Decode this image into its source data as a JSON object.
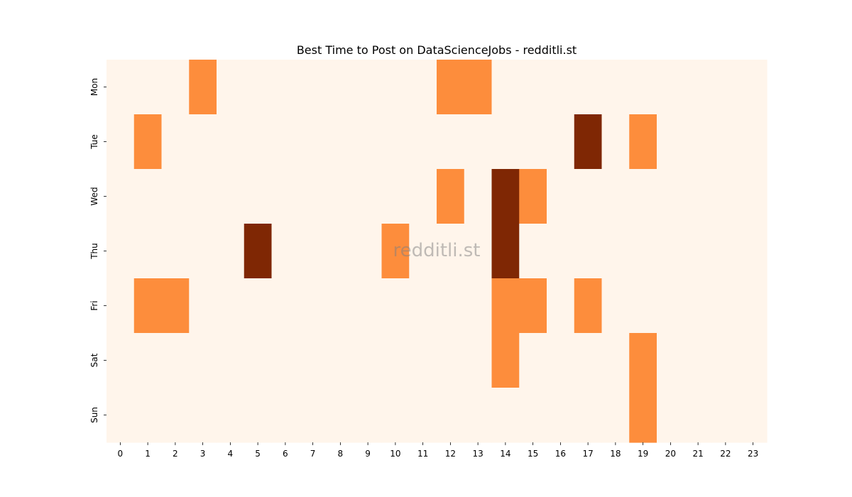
{
  "chart_data": {
    "type": "heatmap",
    "title": "Best Time to Post on DataScienceJobs - redditli.st",
    "watermark": "redditli.st",
    "xlabel": "",
    "ylabel": "",
    "x_categories": [
      "0",
      "1",
      "2",
      "3",
      "4",
      "5",
      "6",
      "7",
      "8",
      "9",
      "10",
      "11",
      "12",
      "13",
      "14",
      "15",
      "16",
      "17",
      "18",
      "19",
      "20",
      "21",
      "22",
      "23"
    ],
    "y_categories": [
      "Mon",
      "Tue",
      "Wed",
      "Thu",
      "Fri",
      "Sat",
      "Sun"
    ],
    "values": [
      [
        0,
        0,
        0,
        1,
        0,
        0,
        0,
        0,
        0,
        0,
        0,
        0,
        1,
        1,
        0,
        0,
        0,
        0,
        0,
        0,
        0,
        0,
        0,
        0
      ],
      [
        0,
        1,
        0,
        0,
        0,
        0,
        0,
        0,
        0,
        0,
        0,
        0,
        0,
        0,
        0,
        0,
        0,
        2,
        0,
        1,
        0,
        0,
        0,
        0
      ],
      [
        0,
        0,
        0,
        0,
        0,
        0,
        0,
        0,
        0,
        0,
        0,
        0,
        1,
        0,
        2,
        1,
        0,
        0,
        0,
        0,
        0,
        0,
        0,
        0
      ],
      [
        0,
        0,
        0,
        0,
        0,
        2,
        0,
        0,
        0,
        0,
        1,
        0,
        0,
        0,
        2,
        0,
        0,
        0,
        0,
        0,
        0,
        0,
        0,
        0
      ],
      [
        0,
        1,
        1,
        0,
        0,
        0,
        0,
        0,
        0,
        0,
        0,
        0,
        0,
        0,
        1,
        1,
        0,
        1,
        0,
        0,
        0,
        0,
        0,
        0
      ],
      [
        0,
        0,
        0,
        0,
        0,
        0,
        0,
        0,
        0,
        0,
        0,
        0,
        0,
        0,
        1,
        0,
        0,
        0,
        0,
        1,
        0,
        0,
        0,
        0
      ],
      [
        0,
        0,
        0,
        0,
        0,
        0,
        0,
        0,
        0,
        0,
        0,
        0,
        0,
        0,
        0,
        0,
        0,
        0,
        0,
        1,
        0,
        0,
        0,
        0
      ]
    ],
    "colormap": [
      "#fff5eb",
      "#fd8d3c",
      "#7f2704"
    ],
    "legend": false,
    "grid": false
  }
}
